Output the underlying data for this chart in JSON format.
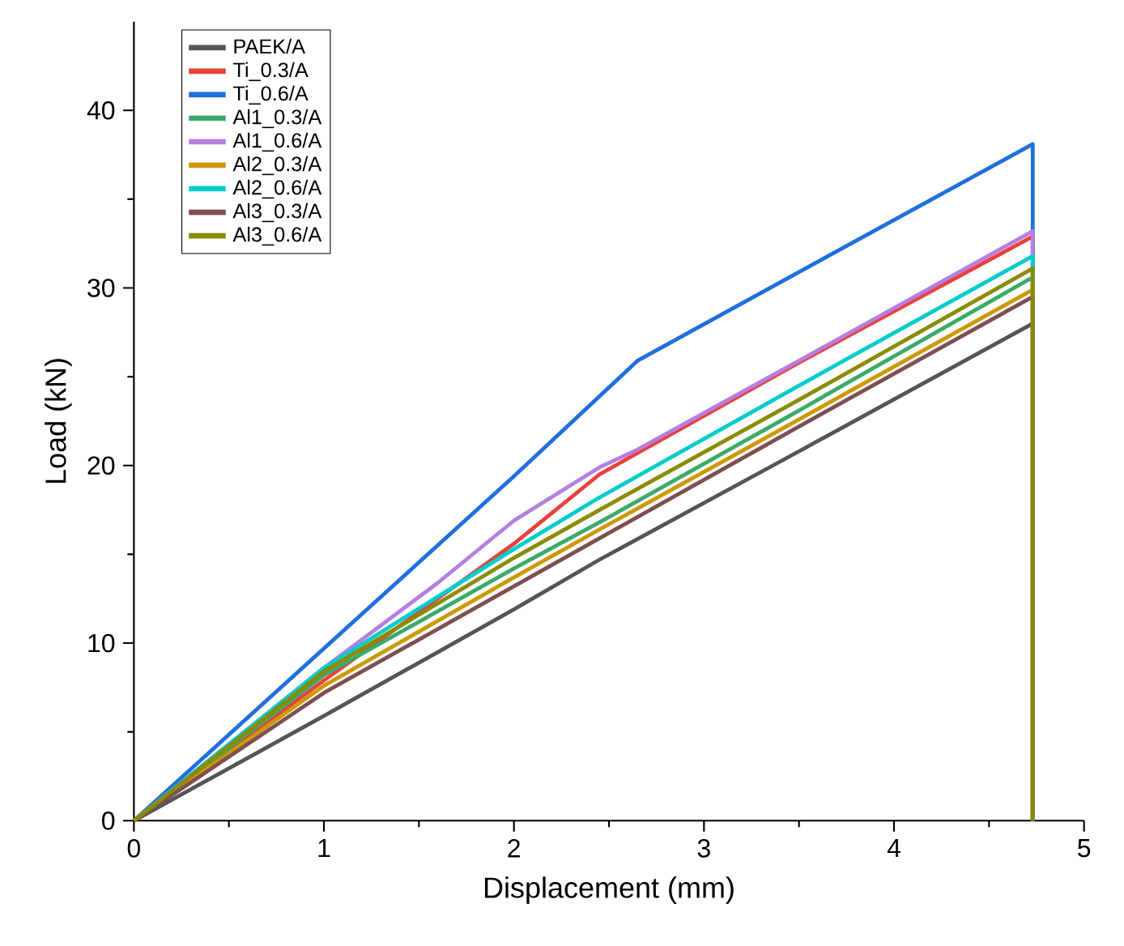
{
  "chart_data": {
    "type": "line",
    "xlabel": "Displacement (mm)",
    "ylabel": "Load (kN)",
    "xlim": [
      0,
      5
    ],
    "ylim": [
      0,
      45
    ],
    "xticks": [
      0,
      1,
      2,
      3,
      4,
      5
    ],
    "yticks": [
      0,
      10,
      20,
      30,
      40
    ],
    "legend": "top left",
    "series": [
      {
        "name": "PAEK/A",
        "color": "#555555",
        "x": [
          0,
          1,
          2,
          2.45,
          3.5,
          4.73,
          4.73
        ],
        "values": [
          0,
          5.9,
          11.9,
          14.7,
          20.8,
          28.0,
          0
        ]
      },
      {
        "name": "Ti_0.3/A",
        "color": "#e8413c",
        "x": [
          0,
          1,
          2,
          2.45,
          2.65,
          3.5,
          4.73,
          4.73
        ],
        "values": [
          0,
          7.9,
          15.6,
          19.5,
          20.7,
          25.8,
          32.9,
          0
        ]
      },
      {
        "name": "Ti_0.6/A",
        "color": "#1f6fe0",
        "x": [
          0,
          1,
          2,
          2.65,
          3.5,
          4.73,
          4.73
        ],
        "values": [
          0,
          9.7,
          19.4,
          25.9,
          30.9,
          38.1,
          0
        ]
      },
      {
        "name": "Al1_0.3/A",
        "color": "#3aaa6a",
        "x": [
          0,
          1,
          2,
          2.45,
          3.5,
          4.73,
          4.73
        ],
        "values": [
          0,
          8.2,
          14.2,
          16.8,
          23.1,
          30.6,
          0
        ]
      },
      {
        "name": "Al1_0.6/A",
        "color": "#b57ee0",
        "x": [
          0,
          1,
          1.6,
          2,
          2.45,
          2.65,
          3.5,
          4.73,
          4.73
        ],
        "values": [
          0,
          8.6,
          13.4,
          16.9,
          19.9,
          20.9,
          25.9,
          33.2,
          0
        ]
      },
      {
        "name": "Al2_0.3/A",
        "color": "#cc9900",
        "x": [
          0,
          1,
          2,
          2.45,
          3.5,
          4.73,
          4.73
        ],
        "values": [
          0,
          7.6,
          13.7,
          16.4,
          22.6,
          29.9,
          0
        ]
      },
      {
        "name": "Al2_0.6/A",
        "color": "#00cccc",
        "x": [
          0,
          1,
          2,
          2.45,
          3.5,
          4.73,
          4.73
        ],
        "values": [
          0,
          8.6,
          15.3,
          18.2,
          24.5,
          31.8,
          0
        ]
      },
      {
        "name": "Al3_0.3/A",
        "color": "#7f4f4f",
        "x": [
          0,
          1,
          2,
          2.45,
          3.5,
          4.73,
          4.73
        ],
        "values": [
          0,
          7.2,
          13.2,
          15.9,
          22.2,
          29.5,
          0
        ]
      },
      {
        "name": "Al3_0.6/A",
        "color": "#8b8b00",
        "x": [
          0,
          1,
          2,
          2.45,
          3.5,
          4.73,
          4.73
        ],
        "values": [
          0,
          8.4,
          14.8,
          17.5,
          23.7,
          31.1,
          0
        ]
      }
    ]
  }
}
